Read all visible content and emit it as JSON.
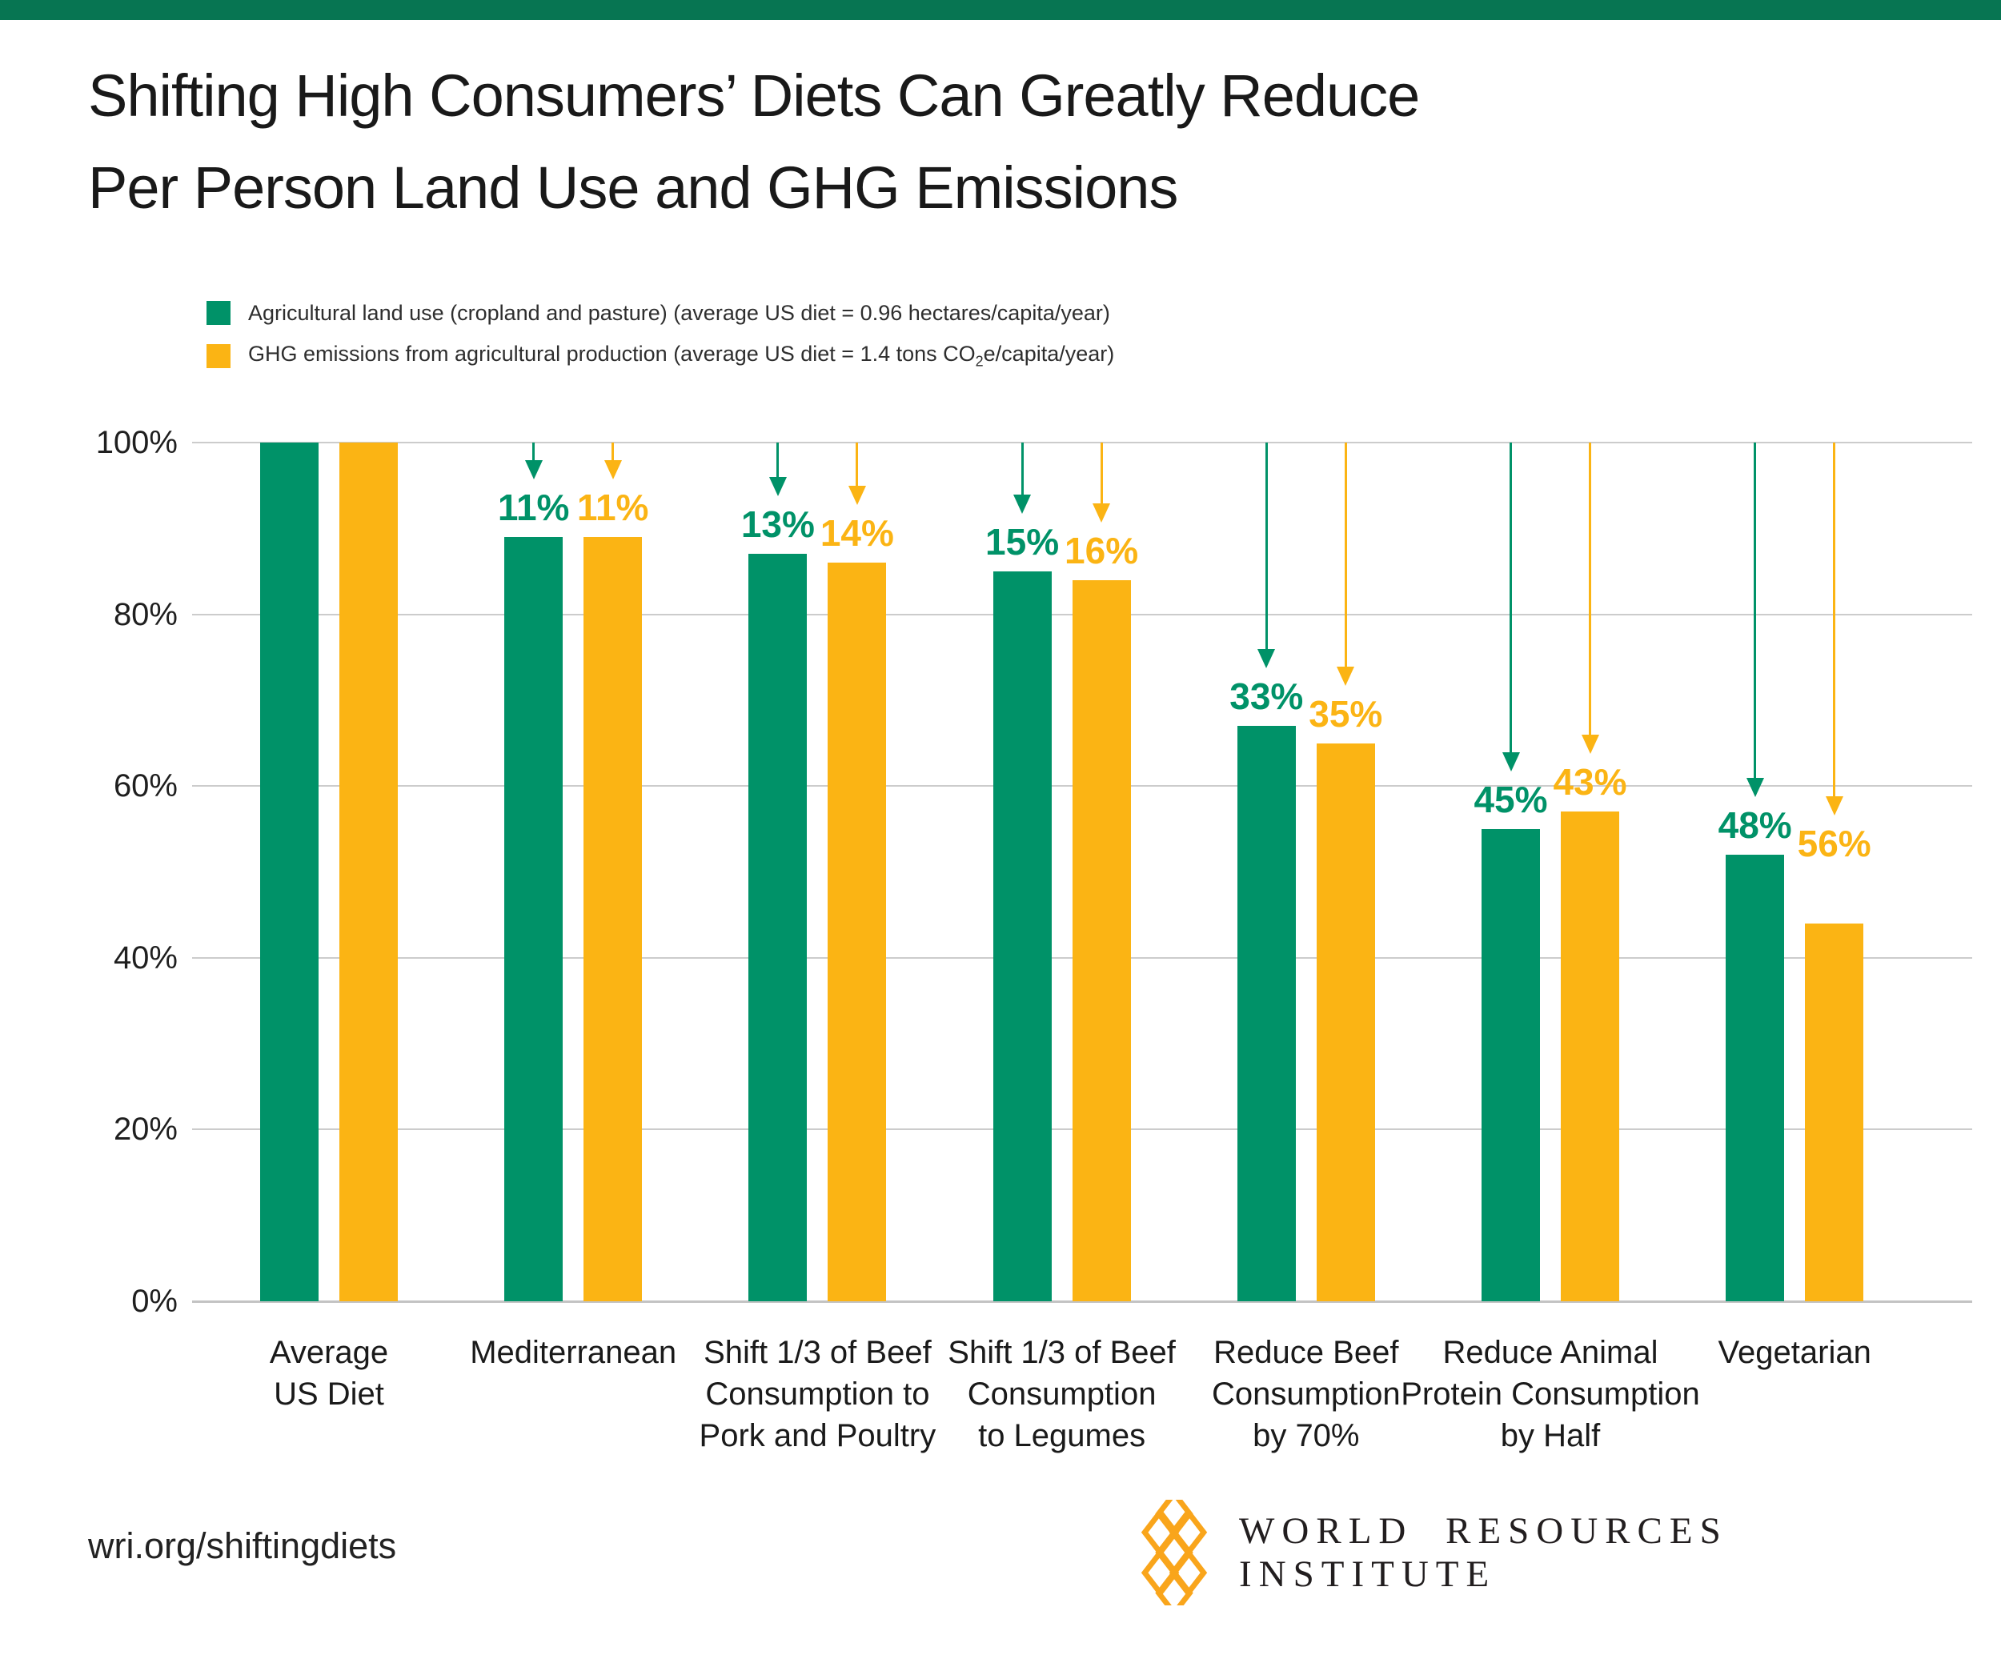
{
  "page": {
    "strip_color": "#077552"
  },
  "title": {
    "line1": "Shifting High Consumers’ Diets Can Greatly Reduce",
    "line2": "Per Person Land Use and GHG Emissions"
  },
  "legend": {
    "items": [
      {
        "color": "#009268",
        "label": "Agricultural land use (cropland and pasture) (average US diet = 0.96 hectares/capita/year)"
      },
      {
        "color": "#FBB414",
        "label_pre": "GHG emissions from agricultural production (average US diet = 1.4 tons CO",
        "label_sub": "2",
        "label_post": "e/capita/year)"
      }
    ]
  },
  "chart_data": {
    "type": "bar",
    "title": "Shifting High Consumers’ Diets Can Greatly Reduce Per Person Land Use and GHG Emissions",
    "categories": [
      {
        "label_lines": [
          "Average",
          "US Diet"
        ]
      },
      {
        "label_lines": [
          "Mediterranean"
        ]
      },
      {
        "label_lines": [
          "Shift 1/3 of Beef",
          "Consumption to",
          "Pork and Poultry"
        ]
      },
      {
        "label_lines": [
          "Shift 1/3 of Beef",
          "Consumption",
          "to Legumes"
        ]
      },
      {
        "label_lines": [
          "Reduce Beef",
          "Consumption",
          "by 70%"
        ]
      },
      {
        "label_lines": [
          "Reduce Animal",
          "Protein Consumption",
          "by Half"
        ]
      },
      {
        "label_lines": [
          "Vegetarian"
        ]
      }
    ],
    "series": [
      {
        "name": "Agricultural land use (cropland and pasture) (average US diet = 0.96 hectares/capita/year)",
        "color": "#009268",
        "values_pct_of_avg_us_diet": [
          100,
          89,
          87,
          85,
          67,
          55,
          52
        ],
        "reduction_labels": [
          "",
          "11%",
          "13%",
          "15%",
          "33%",
          "45%",
          "48%"
        ]
      },
      {
        "name": "GHG emissions from agricultural production (average US diet = 1.4 tons CO2e/capita/year)",
        "color": "#FBB414",
        "values_pct_of_avg_us_diet": [
          100,
          89,
          86,
          84,
          65,
          57,
          44
        ],
        "reduction_labels": [
          "",
          "11%",
          "14%",
          "16%",
          "35%",
          "43%",
          "56%"
        ],
        "label_gaps": [
          null,
          null,
          null,
          null,
          null,
          null,
          75
        ]
      }
    ],
    "yticks": [
      "100%",
      "80%",
      "60%",
      "40%",
      "20%",
      "0%"
    ],
    "ytick_values": [
      100,
      80,
      60,
      40,
      20,
      0
    ],
    "ylim": [
      0,
      100
    ],
    "grid": true,
    "legend_position": "top-left",
    "annotation_style": "downward arrows from 100% line with percent-reduction labels above each bar"
  },
  "footer": {
    "link": "wri.org/shiftingdiets",
    "org": "WORLD RESOURCES INSTITUTE"
  }
}
